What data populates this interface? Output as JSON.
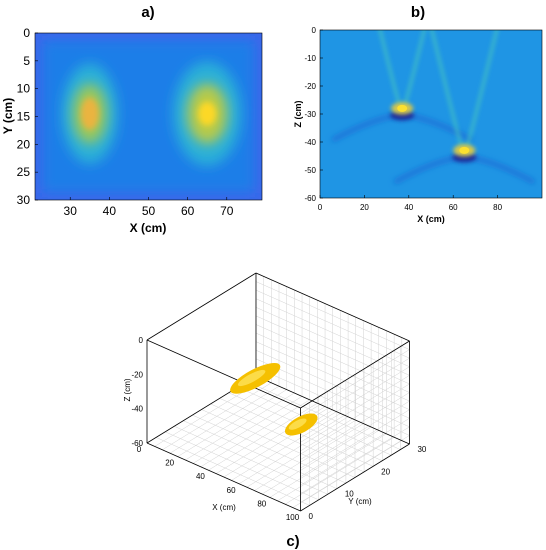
{
  "chart_data": [
    {
      "panel_label": "a)",
      "type": "heatmap",
      "xlabel": "X (cm)",
      "ylabel": "Y (cm)",
      "xlim": [
        21,
        79
      ],
      "ylim": [
        30,
        0
      ],
      "xticks": [
        30,
        40,
        50,
        60,
        70
      ],
      "yticks": [
        0,
        5,
        10,
        15,
        20,
        25,
        30
      ],
      "colormap": "parula",
      "hotspots": [
        {
          "x": 35,
          "y": 14.5,
          "intensity": 0.78
        },
        {
          "x": 65,
          "y": 14.5,
          "intensity": 0.9
        }
      ]
    },
    {
      "panel_label": "b)",
      "type": "heatmap",
      "xlabel": "X (cm)",
      "ylabel": "Z (cm)",
      "xlim": [
        0,
        100
      ],
      "ylim": [
        -60,
        0
      ],
      "xticks": [
        0,
        20,
        40,
        60,
        80
      ],
      "yticks": [
        0,
        -10,
        -20,
        -30,
        -40,
        -50,
        -60
      ],
      "colormap": "parula",
      "hyperbolas": [
        {
          "x": 37,
          "z": -28
        },
        {
          "x": 65,
          "z": -43
        }
      ]
    },
    {
      "panel_label": "c)",
      "type": "scatter",
      "xlabel": "X (cm)",
      "ylabel": "Y (cm)",
      "zlabel": "Z (cm)",
      "xticks": [
        0,
        20,
        40,
        60,
        80,
        100
      ],
      "yticks": [
        0,
        10,
        20,
        30
      ],
      "zticks": [
        0,
        -20,
        -40,
        -60
      ],
      "color": "#f5c000",
      "objects": [
        {
          "x": 35,
          "y": 15,
          "z": -28
        },
        {
          "x": 65,
          "y": 15,
          "z": -43
        }
      ]
    }
  ]
}
